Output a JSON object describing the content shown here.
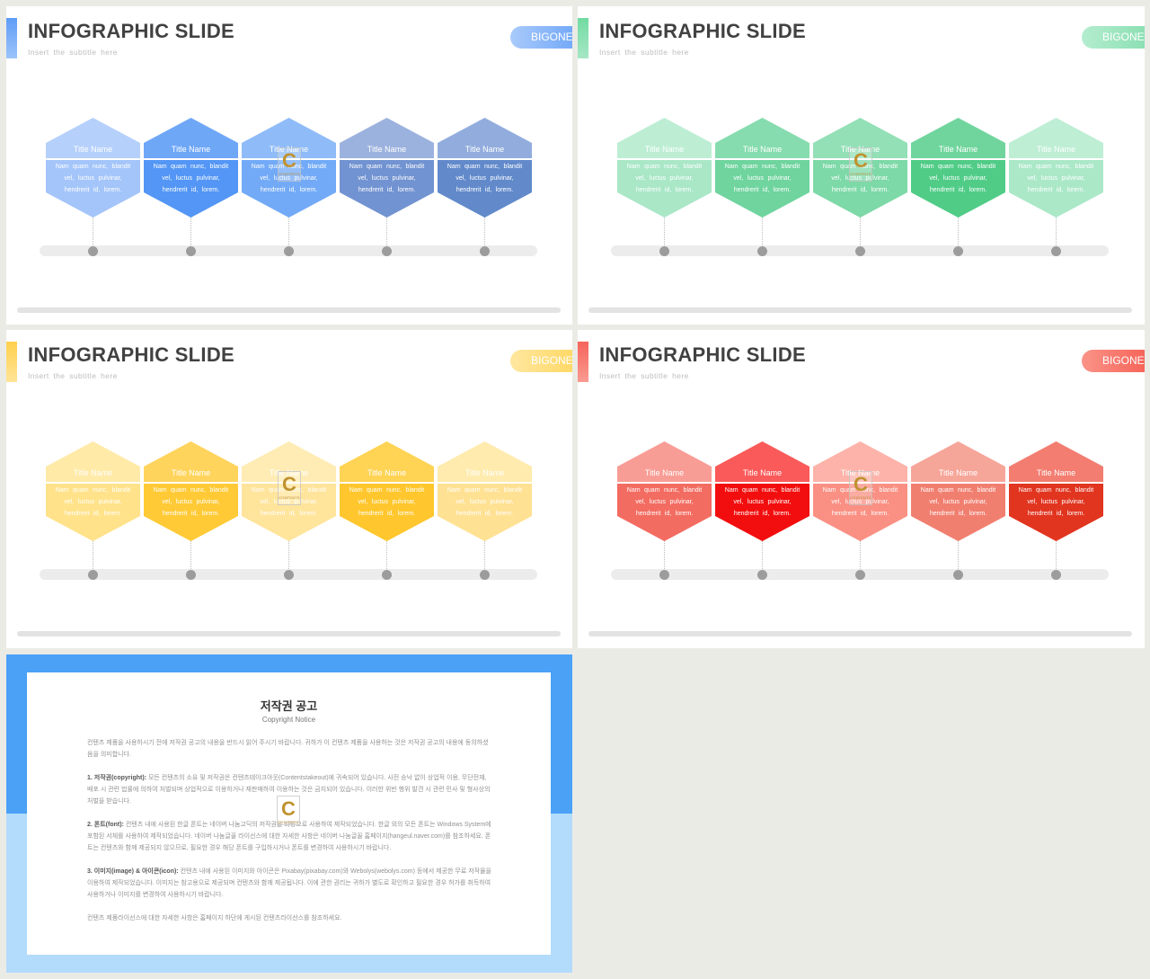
{
  "slides": [
    {
      "title": "INFOGRAPHIC SLIDE",
      "subtitle": "Insert the subtitle here",
      "badge": "BIGONE",
      "accent": [
        "#5e9df6",
        "#9cc4fa"
      ],
      "badge_gradient": [
        "#a9cafb",
        "#5e9cf6"
      ],
      "hexagons": [
        {
          "title": "Title Name",
          "lines": [
            "Nam quam nunc, blandit",
            "vel, luctus pulvinar,",
            "hendrerit id, lorem."
          ],
          "title_color": "#b5d0fb",
          "body_color": "#a4c5fa"
        },
        {
          "title": "Title Name",
          "lines": [
            "Nam quam nunc, blandit",
            "vel, luctus pulvinar,",
            "hendrerit id, lorem."
          ],
          "title_color": "#6fa7f7",
          "body_color": "#5396f5"
        },
        {
          "title": "Title Name",
          "lines": [
            "Nam quam nunc, blandit",
            "vel, luctus pulvinar,",
            "hendrerit id, lorem."
          ],
          "title_color": "#8fbcf8",
          "body_color": "#72aaf7"
        },
        {
          "title": "Title Name",
          "lines": [
            "Nam quam nunc, blandit",
            "vel, luctus pulvinar,",
            "hendrerit id, lorem."
          ],
          "title_color": "#9cb2de",
          "body_color": "#7293d1"
        },
        {
          "title": "Title Name",
          "lines": [
            "Nam quam nunc, blandit",
            "vel, luctus pulvinar,",
            "hendrerit id, lorem."
          ],
          "title_color": "#92addd",
          "body_color": "#628acb"
        }
      ]
    },
    {
      "title": "INFOGRAPHIC SLIDE",
      "subtitle": "Insert the subtitle here",
      "badge": "BIGONE",
      "accent": [
        "#72dba2",
        "#a6e7c5"
      ],
      "badge_gradient": [
        "#b4edcf",
        "#7cdaa8"
      ],
      "hexagons": [
        {
          "title": "Title Name",
          "lines": [
            "Nam quam nunc, blandit",
            "vel, luctus pulvinar,",
            "hendrerit id, lorem."
          ],
          "title_color": "#bdeed4",
          "body_color": "#a9e7c7"
        },
        {
          "title": "Title Name",
          "lines": [
            "Nam quam nunc, blandit",
            "vel, luctus pulvinar,",
            "hendrerit id, lorem."
          ],
          "title_color": "#86dcae",
          "body_color": "#6fd49e"
        },
        {
          "title": "Title Name",
          "lines": [
            "Nam quam nunc, blandit",
            "vel, luctus pulvinar,",
            "hendrerit id, lorem."
          ],
          "title_color": "#93e0b7",
          "body_color": "#7dd9a7"
        },
        {
          "title": "Title Name",
          "lines": [
            "Nam quam nunc, blandit",
            "vel, luctus pulvinar,",
            "hendrerit id, lorem."
          ],
          "title_color": "#70d59d",
          "body_color": "#50cc87"
        },
        {
          "title": "Title Name",
          "lines": [
            "Nam quam nunc, blandit",
            "vel, luctus pulvinar,",
            "hendrerit id, lorem."
          ],
          "title_color": "#beeed4",
          "body_color": "#abe8c8"
        }
      ]
    },
    {
      "title": "INFOGRAPHIC SLIDE",
      "subtitle": "Insert the subtitle here",
      "badge": "BIGONE",
      "accent": [
        "#ffd04e",
        "#ffe497"
      ],
      "badge_gradient": [
        "#ffe7a0",
        "#ffd24f"
      ],
      "hexagons": [
        {
          "title": "Title Name",
          "lines": [
            "Nam quam nunc, blandit",
            "vel, luctus pulvinar,",
            "hendrerit id, lorem."
          ],
          "title_color": "#ffeaa8",
          "body_color": "#ffe28a"
        },
        {
          "title": "Title Name",
          "lines": [
            "Nam quam nunc, blandit",
            "vel, luctus pulvinar,",
            "hendrerit id, lorem."
          ],
          "title_color": "#ffd45c",
          "body_color": "#ffca36"
        },
        {
          "title": "Title Name",
          "lines": [
            "Nam quam nunc, blandit",
            "vel, luctus pulvinar,",
            "hendrerit id, lorem."
          ],
          "title_color": "#ffecb5",
          "body_color": "#ffe49b"
        },
        {
          "title": "Title Name",
          "lines": [
            "Nam quam nunc, blandit",
            "vel, luctus pulvinar,",
            "hendrerit id, lorem."
          ],
          "title_color": "#ffd354",
          "body_color": "#ffc72d"
        },
        {
          "title": "Title Name",
          "lines": [
            "Nam quam nunc, blandit",
            "vel, luctus pulvinar,",
            "hendrerit id, lorem."
          ],
          "title_color": "#ffebae",
          "body_color": "#ffe193"
        }
      ]
    },
    {
      "title": "INFOGRAPHIC SLIDE",
      "subtitle": "Insert the subtitle here",
      "badge": "BIGONE",
      "accent": [
        "#f5645a",
        "#fa9b91"
      ],
      "badge_gradient": [
        "#fa9388",
        "#f55246"
      ],
      "hexagons": [
        {
          "title": "Title Name",
          "lines": [
            "Nam quam nunc, blandit",
            "vel, luctus pulvinar,",
            "hendrerit id, lorem."
          ],
          "title_color": "#f89d95",
          "body_color": "#f36c61"
        },
        {
          "title": "Title Name",
          "lines": [
            "Nam quam nunc, blandit",
            "vel, luctus pulvinar,",
            "hendrerit id, lorem."
          ],
          "title_color": "#fa5a5a",
          "body_color": "#f20e0e"
        },
        {
          "title": "Title Name",
          "lines": [
            "Nam quam nunc, blandit",
            "vel, luctus pulvinar,",
            "hendrerit id, lorem."
          ],
          "title_color": "#fdb3a9",
          "body_color": "#fa9083"
        },
        {
          "title": "Title Name",
          "lines": [
            "Nam quam nunc, blandit",
            "vel, luctus pulvinar,",
            "hendrerit id, lorem."
          ],
          "title_color": "#f6a699",
          "body_color": "#f17f70"
        },
        {
          "title": "Title Name",
          "lines": [
            "Nam quam nunc, blandit",
            "vel, luctus pulvinar,",
            "hendrerit id, lorem."
          ],
          "title_color": "#f27d70",
          "body_color": "#e13520"
        }
      ]
    }
  ],
  "watermark": {
    "letter": "C",
    "text": "CONTENTS"
  },
  "notice": {
    "title": "저작권 공고",
    "subtitle": "Copyright Notice",
    "top_color": "#4aa1f6",
    "bottom_color": "#b3dbfb",
    "paragraphs": [
      {
        "text": "컨텐츠 제품을 사용하시기 전에 저작권 공고의 내용을 반드시 읽어 주시기 바랍니다. 귀하가 이 컨텐츠 제품을 사용하는 것은 저작권 공고의 내용에 동의하셨음을 의미합니다."
      },
      {
        "label": "1. 저작권(copyright):",
        "text": " 모든 컨텐츠의 소유 및 저작권은 컨텐츠테이크아웃(Contentstakeout)에 귀속되어 있습니다. 사전 승낙 없이 상업적 이용, 무단전재, 배포 시 관련 법률에 의하여 처벌되며 상업적으로 이용하거나 재판매하여 이용하는 것은 금지되어 있습니다. 이러한 위반 행위 발견 시 관련 민사 및 형사상의 처벌을 받습니다."
      },
      {
        "label": "2. 폰트(font):",
        "text": " 컨텐츠 내에 사용된 한글 폰트는 네이버 나눔고딕의 저작권을 바탕으로 사용하여 제작되었습니다. 한글 외의 모든 폰트는 Windows System에 포함된 서체를 사용하여 제작되었습니다. 네이버 나눔글꼴 라이선스에 대한 자세한 사항은 네이버 나눔글꼴 홈페이지(hangeul.naver.com)를 참조하세요. 폰트는 컨텐츠와 함께 제공되지 않으므로, 필요한 경우 해당 폰트를 구입하시거나 폰트를 변경하여 사용하시기 바랍니다."
      },
      {
        "label": "3. 이미지(image) & 아이콘(icon):",
        "text": " 컨텐츠 내에 사용된 이미지와 아이콘은 Pixabay(pixabay.com)와 Webolys(webolys.com) 등에서 제공한 무료 저작물을 이용하여 제작되었습니다. 이미지는 참고용으로 제공되며 컨텐츠와 함께 제공됩니다. 이에 관한 권리는 귀하가 별도로 확인하고 필요한 경우 허가를 취득하여 사용하거나 이미지를 변경하여 사용하시기 바랍니다."
      },
      {
        "text": "컨텐츠 제품라이선스에 대한 자세한 사항은 홈페이지 하단에 게시된 컨텐츠라이선스를 참조하세요."
      }
    ]
  }
}
